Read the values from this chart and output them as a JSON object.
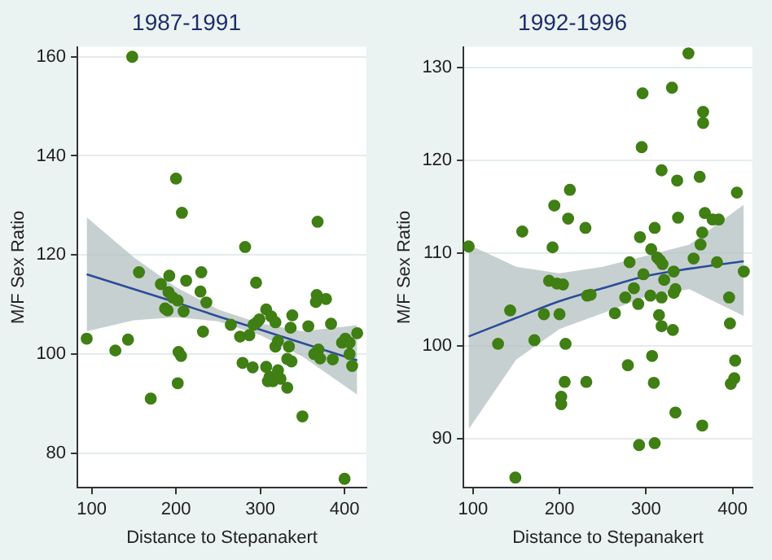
{
  "chart_data": [
    {
      "type": "scatter",
      "title": "1987-1991",
      "xlabel": "Distance to Stepanakert",
      "ylabel": "M/F Sex Ratio",
      "xlim": [
        83,
        426
      ],
      "ylim": [
        73,
        162
      ],
      "xticks": [
        100,
        200,
        300,
        400
      ],
      "yticks": [
        80,
        100,
        120,
        140,
        160
      ],
      "grid": "y",
      "legend": false,
      "series": [
        {
          "type": "scatter",
          "marker": "circle",
          "color": "#3f7f14",
          "x": [
            94,
            128,
            143,
            148,
            156,
            170,
            182,
            187,
            190,
            192,
            191,
            196,
            200,
            202,
            202,
            203,
            206,
            207,
            209,
            212,
            230,
            229,
            232,
            236,
            265,
            276,
            279,
            282,
            287,
            291,
            295,
            292,
            296,
            299,
            307,
            307,
            309,
            311,
            313,
            315,
            318,
            318,
            321,
            321,
            324,
            332,
            332,
            334,
            336,
            337,
            338,
            350,
            357,
            364,
            367,
            366,
            368,
            369,
            371,
            378,
            384,
            386,
            397,
            400,
            401,
            406,
            406,
            409,
            415
          ],
          "values": [
            103.1,
            100.7,
            102.9,
            160,
            116.5,
            91,
            114.1,
            109.2,
            108.8,
            115.8,
            112.5,
            111.4,
            135.4,
            110.8,
            94.1,
            100.4,
            99.6,
            128.5,
            108.6,
            114.8,
            116.5,
            112.6,
            104.5,
            110.4,
            105.9,
            103.5,
            98.2,
            121.6,
            103.8,
            97.3,
            114.4,
            105.9,
            106.4,
            107,
            109,
            97.4,
            94.5,
            95.4,
            107.6,
            94.5,
            106.4,
            101.5,
            96.7,
            102.6,
            95,
            99,
            93.2,
            101.5,
            105.3,
            98.5,
            107.8,
            87.4,
            105.6,
            100,
            111.9,
            110.5,
            126.7,
            100.9,
            99.1,
            111.1,
            106.1,
            98.9,
            102.3,
            74.8,
            103.1,
            102.3,
            100,
            97.6,
            104.2
          ]
        },
        {
          "type": "line",
          "color": "#2b4c9b",
          "x": [
            94,
            150,
            200,
            250,
            300,
            350,
            415
          ],
          "values": [
            116.1,
            113.1,
            110.4,
            107.6,
            104.9,
            102.2,
            98.7
          ],
          "lower": [
            104.6,
            106.8,
            107.4,
            106.6,
            103.8,
            99.5,
            91.8
          ],
          "upper": [
            127.6,
            119.5,
            113.5,
            109.0,
            106.2,
            104.6,
            105.8
          ]
        }
      ]
    },
    {
      "type": "scatter",
      "title": "1992-1996",
      "xlabel": "Distance to Stepanakert",
      "ylabel": "M/F Sex Ratio",
      "xlim": [
        89,
        423
      ],
      "ylim": [
        84.7,
        132.2
      ],
      "xticks": [
        100,
        200,
        300,
        400
      ],
      "yticks": [
        90,
        100,
        110,
        120,
        130
      ],
      "grid": "y",
      "legend": false,
      "series": [
        {
          "type": "scatter",
          "marker": "circle",
          "color": "#3f7f14",
          "x": [
            95,
            129,
            143,
            157,
            149,
            171,
            182,
            188,
            192,
            194,
            197,
            200,
            204,
            207,
            202,
            202,
            206,
            210,
            212,
            230,
            231,
            232,
            236,
            264,
            279,
            276,
            281,
            286,
            291,
            293,
            292,
            295,
            296,
            297,
            306,
            305,
            307,
            309,
            310,
            310,
            313,
            315,
            316,
            318,
            318,
            319,
            318,
            321,
            330,
            331,
            332,
            332,
            334,
            334,
            336,
            337,
            349,
            355,
            362,
            363,
            365,
            366,
            366,
            365,
            368,
            377,
            384,
            382,
            396,
            397,
            398,
            402,
            403,
            405,
            413
          ],
          "values": [
            110.7,
            100.2,
            103.8,
            112.3,
            85.8,
            100.6,
            103.4,
            107,
            110.6,
            115.1,
            106.7,
            103.4,
            106.6,
            100.2,
            94.5,
            93.7,
            96.1,
            113.7,
            116.8,
            112.7,
            96.1,
            105.4,
            105.5,
            103.5,
            97.9,
            105.2,
            109,
            106.2,
            104.5,
            111.7,
            89.3,
            121.4,
            127.2,
            107.7,
            110.4,
            105.4,
            98.9,
            96,
            89.5,
            112.7,
            109.5,
            103.3,
            109.2,
            118.9,
            105.2,
            108.8,
            102.1,
            107.1,
            127.8,
            101.7,
            108,
            105.7,
            106.1,
            92.8,
            117.8,
            113.8,
            131.5,
            109.4,
            118.2,
            110.9,
            112.2,
            124,
            125.2,
            91.4,
            114.3,
            113.6,
            113.6,
            109,
            105.2,
            102.4,
            95.9,
            96.5,
            98.4,
            116.5,
            108
          ]
        },
        {
          "type": "line",
          "color": "#2b4c9b",
          "x": [
            95,
            150,
            200,
            250,
            300,
            350,
            413
          ],
          "values": [
            101.0,
            103.0,
            104.8,
            106.2,
            107.5,
            108.3,
            109.1
          ],
          "lower": [
            91.0,
            98.5,
            101.8,
            103.5,
            105.3,
            106.1,
            103.2
          ],
          "upper": [
            110.9,
            108.5,
            107.8,
            108.5,
            109.7,
            110.9,
            115.2
          ]
        }
      ]
    }
  ]
}
